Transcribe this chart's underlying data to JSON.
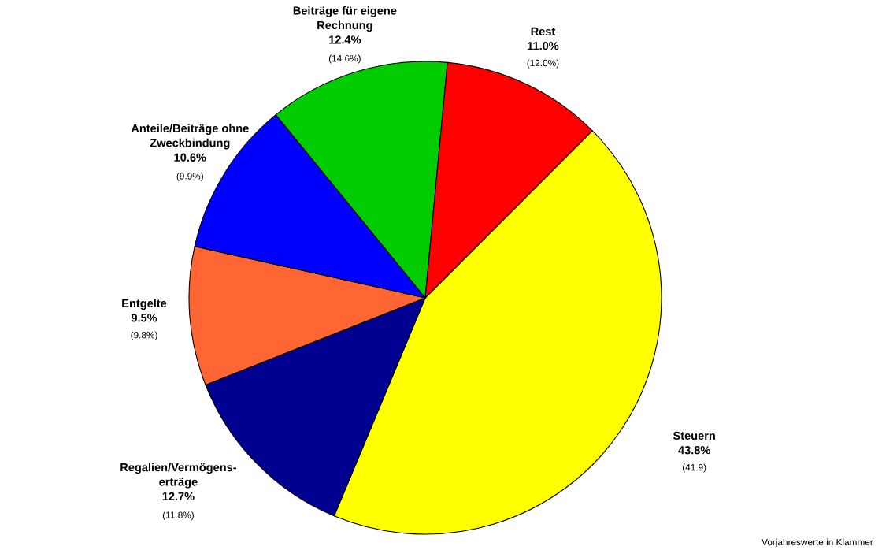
{
  "chart_data": {
    "type": "pie",
    "categories": [
      "Steuern",
      "Regalien/Vermögens-\nerträge",
      "Entgelte",
      "Anteile/Beiträge ohne\nZweckbindung",
      "Beiträge für eigene\nRechnung",
      "Rest"
    ],
    "values": [
      43.8,
      12.7,
      9.5,
      10.6,
      12.4,
      11.0
    ],
    "value_labels": [
      "43.8%",
      "12.7%",
      "9.5%",
      "10.6%",
      "12.4%",
      "11.0%"
    ],
    "colors": [
      "#ffff00",
      "#000090",
      "#ff6633",
      "#0000ff",
      "#00cc00",
      "#ff0000"
    ],
    "annotations": [
      "(41.9)",
      "(11.8%)",
      "(9.8%)",
      "(9.9%)",
      "(14.6%)",
      "(12.0%)",
      "Vorjahreswerte in Klammer"
    ]
  }
}
